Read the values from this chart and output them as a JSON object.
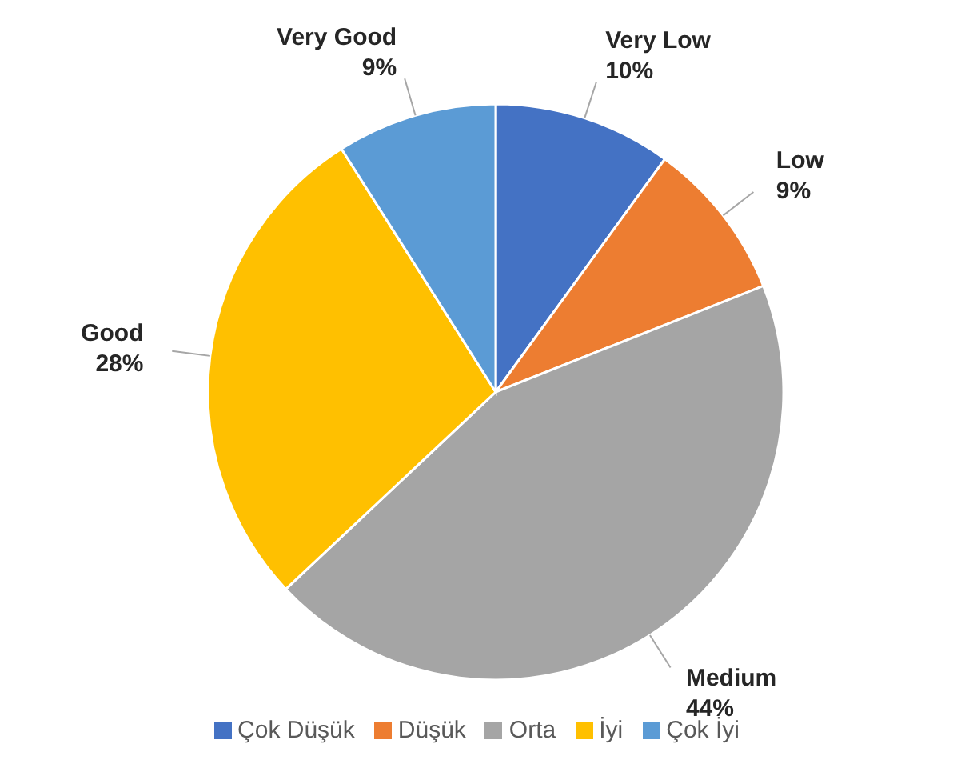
{
  "chart_data": {
    "type": "pie",
    "categories": [
      "Çok Düşük",
      "Düşük",
      "Orta",
      "İyi",
      "Çok İyi"
    ],
    "values": [
      10,
      9,
      44,
      28,
      9
    ],
    "colors": [
      "#4472c4",
      "#ed7d31",
      "#a5a5a5",
      "#ffc000",
      "#5b9bd5"
    ],
    "value_labels": [
      "Very Low\n10%",
      "Low\n9%",
      "Medium\n44%",
      "Good\n28%",
      "Very Good\n9%"
    ],
    "legend": "bottom"
  }
}
